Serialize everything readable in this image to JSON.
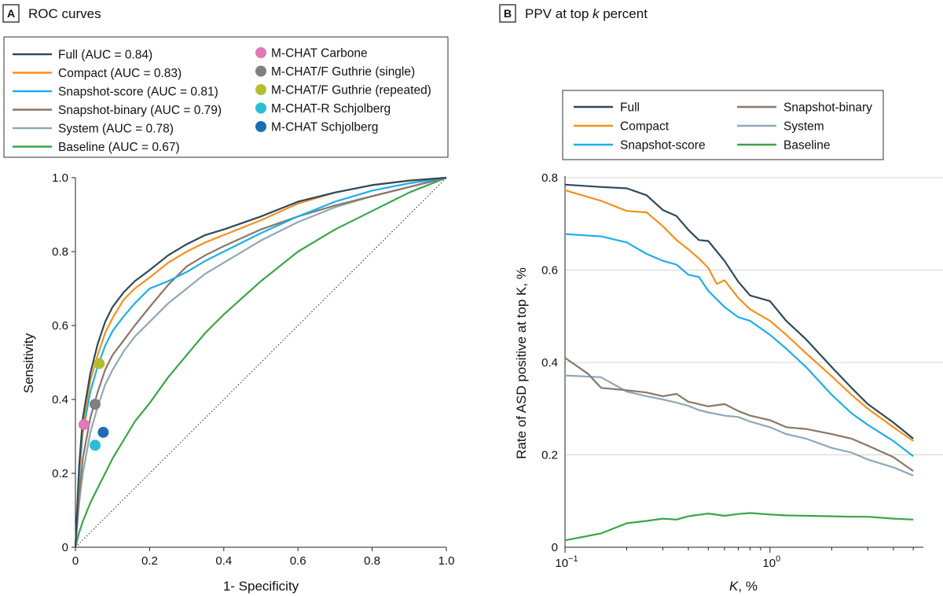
{
  "chart_data": [
    {
      "panel_letter": "A",
      "title": "ROC curves",
      "type": "line",
      "xlabel": "1- Specificity",
      "ylabel": "Sensitivity",
      "xlim": [
        0,
        1
      ],
      "ylim": [
        0,
        1
      ],
      "xticks": [
        "0",
        "0.2",
        "0.4",
        "0.6",
        "0.8",
        "1.0"
      ],
      "yticks": [
        "0",
        "0.2",
        "0.4",
        "0.6",
        "0.8",
        "1.0"
      ],
      "xtick_values": [
        0,
        0.2,
        0.4,
        0.6,
        0.8,
        1.0
      ],
      "ytick_values": [
        0,
        0.2,
        0.4,
        0.6,
        0.8,
        1.0
      ],
      "reference_line": "diagonal",
      "series": [
        {
          "name": "Full",
          "legend": "Full (AUC = 0.84)",
          "color": "#2d4a5c",
          "x": [
            0,
            0.01,
            0.02,
            0.04,
            0.06,
            0.08,
            0.1,
            0.13,
            0.16,
            0.2,
            0.25,
            0.3,
            0.35,
            0.4,
            0.5,
            0.6,
            0.7,
            0.8,
            0.9,
            1.0
          ],
          "y": [
            0,
            0.22,
            0.35,
            0.47,
            0.55,
            0.61,
            0.65,
            0.69,
            0.72,
            0.75,
            0.79,
            0.82,
            0.845,
            0.86,
            0.895,
            0.935,
            0.96,
            0.98,
            0.992,
            1.0
          ]
        },
        {
          "name": "Compact",
          "legend": "Compact (AUC = 0.83)",
          "color": "#f5901e",
          "x": [
            0,
            0.01,
            0.02,
            0.04,
            0.06,
            0.08,
            0.1,
            0.13,
            0.16,
            0.2,
            0.25,
            0.3,
            0.35,
            0.4,
            0.5,
            0.6,
            0.7,
            0.8,
            0.9,
            1.0
          ],
          "y": [
            0,
            0.2,
            0.33,
            0.45,
            0.52,
            0.58,
            0.62,
            0.67,
            0.7,
            0.73,
            0.77,
            0.8,
            0.825,
            0.845,
            0.885,
            0.93,
            0.96,
            0.98,
            0.993,
            1.0
          ]
        },
        {
          "name": "Snapshot-score",
          "legend": "Snapshot-score (AUC = 0.81)",
          "color": "#1eaee8",
          "x": [
            0,
            0.01,
            0.02,
            0.04,
            0.06,
            0.08,
            0.1,
            0.13,
            0.16,
            0.2,
            0.25,
            0.3,
            0.35,
            0.4,
            0.5,
            0.6,
            0.7,
            0.8,
            0.9,
            1.0
          ],
          "y": [
            0,
            0.19,
            0.31,
            0.42,
            0.49,
            0.545,
            0.585,
            0.625,
            0.66,
            0.7,
            0.72,
            0.745,
            0.775,
            0.8,
            0.85,
            0.895,
            0.935,
            0.965,
            0.985,
            1.0
          ]
        },
        {
          "name": "Snapshot-binary",
          "legend": "Snapshot-binary (AUC = 0.79)",
          "color": "#8a7667",
          "x": [
            0,
            0.01,
            0.02,
            0.04,
            0.06,
            0.08,
            0.1,
            0.13,
            0.16,
            0.2,
            0.25,
            0.3,
            0.35,
            0.4,
            0.5,
            0.6,
            0.7,
            0.8,
            0.9,
            1.0
          ],
          "y": [
            0,
            0.14,
            0.24,
            0.35,
            0.42,
            0.48,
            0.52,
            0.56,
            0.6,
            0.65,
            0.71,
            0.76,
            0.79,
            0.815,
            0.86,
            0.895,
            0.925,
            0.95,
            0.975,
            1.0
          ]
        },
        {
          "name": "System",
          "legend": "System (AUC = 0.78)",
          "color": "#8fa8b8",
          "x": [
            0,
            0.01,
            0.02,
            0.04,
            0.06,
            0.08,
            0.1,
            0.13,
            0.16,
            0.2,
            0.25,
            0.3,
            0.35,
            0.4,
            0.5,
            0.6,
            0.7,
            0.8,
            0.9,
            1.0
          ],
          "y": [
            0,
            0.12,
            0.2,
            0.31,
            0.38,
            0.44,
            0.48,
            0.53,
            0.57,
            0.61,
            0.66,
            0.7,
            0.74,
            0.77,
            0.83,
            0.88,
            0.92,
            0.95,
            0.975,
            1.0
          ]
        },
        {
          "name": "Baseline",
          "legend": "Baseline (AUC = 0.67)",
          "color": "#3aa548",
          "x": [
            0,
            0.01,
            0.02,
            0.04,
            0.06,
            0.08,
            0.1,
            0.13,
            0.16,
            0.2,
            0.25,
            0.3,
            0.35,
            0.4,
            0.5,
            0.6,
            0.7,
            0.8,
            0.9,
            1.0
          ],
          "y": [
            0,
            0.04,
            0.07,
            0.12,
            0.16,
            0.2,
            0.24,
            0.29,
            0.34,
            0.39,
            0.46,
            0.52,
            0.58,
            0.63,
            0.72,
            0.8,
            0.86,
            0.91,
            0.96,
            1.0
          ]
        }
      ],
      "points": [
        {
          "name": "M-CHAT Carbone",
          "color": "#e07ab8",
          "x": 0.023,
          "y": 0.332
        },
        {
          "name": "M-CHAT/F Guthrie (single)",
          "color": "#808080",
          "x": 0.053,
          "y": 0.387
        },
        {
          "name": "M-CHAT/F Guthrie (repeated)",
          "color": "#b5bd2f",
          "x": 0.064,
          "y": 0.497
        },
        {
          "name": "M-CHAT-R Schjolberg",
          "color": "#2bbdd6",
          "x": 0.053,
          "y": 0.276
        },
        {
          "name": "M-CHAT Schjolberg",
          "color": "#1d6db5",
          "x": 0.075,
          "y": 0.311
        }
      ]
    },
    {
      "panel_letter": "B",
      "title": "PPV at top k percent",
      "title_prefix": "PPV at top ",
      "title_var": "k",
      "title_suffix": " percent",
      "type": "line",
      "xscale": "log",
      "xlabel": "K, %",
      "xlabel_var": "K",
      "xlabel_suffix": ", %",
      "ylabel": "Rate of ASD positive at top K, %",
      "xlim": [
        0.1,
        5
      ],
      "ylim": [
        0,
        0.8
      ],
      "xticks": [
        {
          "base": "10",
          "exp": "−1",
          "value": 0.1
        },
        {
          "base": "10",
          "exp": "0",
          "value": 1
        }
      ],
      "yticks": [
        "0",
        "0.2",
        "0.4",
        "0.6",
        "0.8"
      ],
      "ytick_values": [
        0,
        0.2,
        0.4,
        0.6,
        0.8
      ],
      "series": [
        {
          "name": "Full",
          "color": "#2d4a5c",
          "x": [
            0.1,
            0.15,
            0.2,
            0.25,
            0.3,
            0.35,
            0.4,
            0.45,
            0.5,
            0.6,
            0.7,
            0.8,
            1.0,
            1.2,
            1.5,
            2.0,
            2.5,
            3.0,
            4.0,
            5.0
          ],
          "y": [
            0.785,
            0.78,
            0.777,
            0.762,
            0.73,
            0.717,
            0.687,
            0.665,
            0.663,
            0.62,
            0.575,
            0.545,
            0.533,
            0.49,
            0.45,
            0.39,
            0.345,
            0.31,
            0.27,
            0.235
          ]
        },
        {
          "name": "Compact",
          "color": "#f5901e",
          "x": [
            0.1,
            0.15,
            0.2,
            0.25,
            0.3,
            0.35,
            0.4,
            0.45,
            0.5,
            0.55,
            0.6,
            0.7,
            0.8,
            1.0,
            1.2,
            1.5,
            2.0,
            2.5,
            3.0,
            4.0,
            5.0
          ],
          "y": [
            0.773,
            0.75,
            0.728,
            0.725,
            0.695,
            0.665,
            0.645,
            0.625,
            0.605,
            0.57,
            0.578,
            0.54,
            0.515,
            0.49,
            0.46,
            0.42,
            0.37,
            0.33,
            0.3,
            0.26,
            0.23
          ]
        },
        {
          "name": "Snapshot-score",
          "color": "#1eaee8",
          "x": [
            0.1,
            0.15,
            0.2,
            0.25,
            0.3,
            0.35,
            0.4,
            0.45,
            0.5,
            0.6,
            0.7,
            0.8,
            1.0,
            1.2,
            1.5,
            2.0,
            2.5,
            3.0,
            4.0,
            5.0
          ],
          "y": [
            0.678,
            0.673,
            0.66,
            0.635,
            0.62,
            0.612,
            0.59,
            0.585,
            0.555,
            0.52,
            0.498,
            0.49,
            0.46,
            0.43,
            0.39,
            0.33,
            0.29,
            0.265,
            0.23,
            0.197
          ]
        },
        {
          "name": "Snapshot-binary",
          "color": "#8a7667",
          "x": [
            0.1,
            0.13,
            0.15,
            0.2,
            0.25,
            0.3,
            0.35,
            0.4,
            0.5,
            0.6,
            0.7,
            0.8,
            1.0,
            1.2,
            1.5,
            2.0,
            2.5,
            3.0,
            4.0,
            5.0
          ],
          "y": [
            0.41,
            0.375,
            0.345,
            0.34,
            0.335,
            0.327,
            0.332,
            0.315,
            0.305,
            0.31,
            0.295,
            0.285,
            0.275,
            0.26,
            0.256,
            0.245,
            0.235,
            0.22,
            0.195,
            0.165
          ]
        },
        {
          "name": "System",
          "color": "#8fa8b8",
          "x": [
            0.1,
            0.15,
            0.2,
            0.25,
            0.3,
            0.35,
            0.4,
            0.45,
            0.5,
            0.6,
            0.7,
            0.8,
            1.0,
            1.2,
            1.5,
            2.0,
            2.5,
            3.0,
            4.0,
            5.0
          ],
          "y": [
            0.372,
            0.368,
            0.337,
            0.327,
            0.32,
            0.313,
            0.306,
            0.297,
            0.292,
            0.285,
            0.282,
            0.272,
            0.26,
            0.245,
            0.235,
            0.215,
            0.205,
            0.19,
            0.173,
            0.155
          ]
        },
        {
          "name": "Baseline",
          "color": "#3aa548",
          "x": [
            0.1,
            0.15,
            0.2,
            0.25,
            0.3,
            0.35,
            0.4,
            0.5,
            0.6,
            0.7,
            0.8,
            1.0,
            1.2,
            1.5,
            2.0,
            2.5,
            3.0,
            4.0,
            5.0
          ],
          "y": [
            0.015,
            0.03,
            0.052,
            0.057,
            0.062,
            0.06,
            0.067,
            0.073,
            0.068,
            0.072,
            0.074,
            0.071,
            0.069,
            0.068,
            0.067,
            0.066,
            0.066,
            0.062,
            0.06
          ]
        }
      ]
    }
  ]
}
